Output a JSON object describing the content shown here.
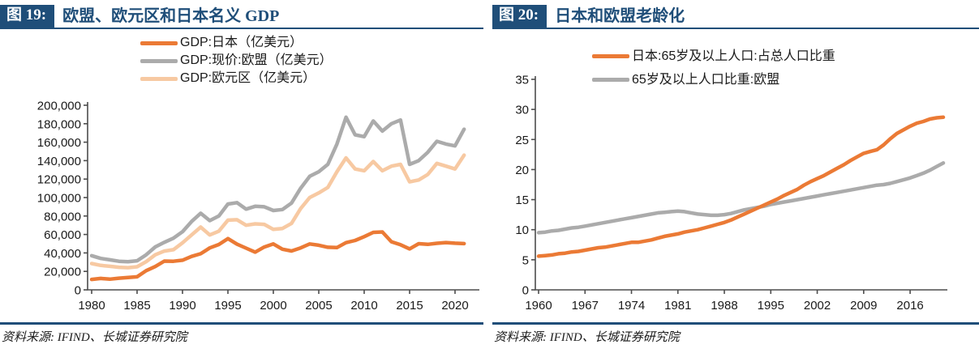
{
  "panels": [
    {
      "fig_label": "图 19:",
      "title": "欧盟、欧元区和日本名义 GDP",
      "source": "资料来源: IFIND、长城证券研究院"
    },
    {
      "fig_label": "图 20:",
      "title": "日本和欧盟老龄化",
      "source": "资料来源: IFIND、长城证券研究院"
    }
  ],
  "colors": {
    "navy": "#1F4E79",
    "orange": "#EB7A35",
    "gray": "#ABABAB",
    "peach": "#F7C9A2",
    "axis": "#4d4d4d"
  },
  "chart_data": [
    {
      "type": "line",
      "title": "欧盟、欧元区和日本名义 GDP",
      "xlabel": "",
      "ylabel": "",
      "ylim": [
        0,
        200000
      ],
      "ytick_step": 20000,
      "xticks": [
        1980,
        1985,
        1990,
        1995,
        2000,
        2005,
        2010,
        2015,
        2020
      ],
      "grid": false,
      "legend_position": "top",
      "x_years": [
        1980,
        1981,
        1982,
        1983,
        1984,
        1985,
        1986,
        1987,
        1988,
        1989,
        1990,
        1991,
        1992,
        1993,
        1994,
        1995,
        1996,
        1997,
        1998,
        1999,
        2000,
        2001,
        2002,
        2003,
        2004,
        2005,
        2006,
        2007,
        2008,
        2009,
        2010,
        2011,
        2012,
        2013,
        2014,
        2015,
        2016,
        2017,
        2018,
        2019,
        2020,
        2021
      ],
      "series": [
        {
          "name": "GDP:日本（亿美元）",
          "color": "#EB7A35",
          "values": [
            11300,
            12400,
            11600,
            12600,
            13300,
            14100,
            20800,
            25300,
            31100,
            31000,
            32100,
            36200,
            39100,
            45400,
            49100,
            55500,
            49500,
            45200,
            40900,
            46400,
            49700,
            44000,
            42100,
            45400,
            49700,
            48300,
            46100,
            45800,
            51100,
            53500,
            57600,
            62300,
            62700,
            52100,
            48900,
            44400,
            50000,
            49300,
            50400,
            51200,
            50500,
            50100
          ]
        },
        {
          "name": "GDP:现价:欧盟（亿美元）",
          "color": "#ABABAB",
          "values": [
            37000,
            34000,
            32500,
            31000,
            30500,
            31500,
            38000,
            46500,
            51500,
            56000,
            63000,
            74000,
            83000,
            75000,
            80000,
            93000,
            94500,
            87500,
            90500,
            90000,
            86000,
            87000,
            94000,
            110000,
            123000,
            128000,
            136000,
            158000,
            187000,
            168000,
            166000,
            183000,
            172000,
            180000,
            184000,
            136000,
            140000,
            149000,
            161000,
            158000,
            156000,
            174000
          ]
        },
        {
          "name": "GDP:欧元区（亿美元）",
          "color": "#F7C9A2",
          "values": [
            28500,
            26500,
            25500,
            24500,
            24000,
            25000,
            30500,
            38000,
            42000,
            43500,
            51000,
            59500,
            68000,
            59500,
            63500,
            75500,
            76000,
            70000,
            71500,
            71000,
            65500,
            66500,
            72000,
            88000,
            100000,
            105000,
            111000,
            128000,
            143000,
            131000,
            129000,
            139000,
            129000,
            134000,
            136000,
            117000,
            119000,
            125000,
            137000,
            134000,
            131000,
            146000
          ]
        }
      ]
    },
    {
      "type": "line",
      "title": "日本和欧盟老龄化",
      "xlabel": "",
      "ylabel": "",
      "ylim": [
        0,
        35
      ],
      "ytick_step": 5,
      "xticks": [
        1960,
        1967,
        1974,
        1981,
        1988,
        1995,
        2002,
        2009,
        2016
      ],
      "grid": false,
      "legend_position": "top",
      "x_years": [
        1960,
        1961,
        1962,
        1963,
        1964,
        1965,
        1966,
        1967,
        1968,
        1969,
        1970,
        1971,
        1972,
        1973,
        1974,
        1975,
        1976,
        1977,
        1978,
        1979,
        1980,
        1981,
        1982,
        1983,
        1984,
        1985,
        1986,
        1987,
        1988,
        1989,
        1990,
        1991,
        1992,
        1993,
        1994,
        1995,
        1996,
        1997,
        1998,
        1999,
        2000,
        2001,
        2002,
        2003,
        2004,
        2005,
        2006,
        2007,
        2008,
        2009,
        2010,
        2011,
        2012,
        2013,
        2014,
        2015,
        2016,
        2017,
        2018,
        2019,
        2020,
        2021
      ],
      "series": [
        {
          "name": "日本:65岁及以上人口:占总人口比重",
          "color": "#EB7A35",
          "values": [
            5.6,
            5.7,
            5.8,
            6.0,
            6.1,
            6.3,
            6.4,
            6.6,
            6.8,
            7.0,
            7.1,
            7.3,
            7.5,
            7.7,
            7.9,
            7.9,
            8.1,
            8.3,
            8.6,
            8.9,
            9.1,
            9.3,
            9.6,
            9.8,
            10.0,
            10.3,
            10.6,
            10.9,
            11.2,
            11.6,
            12.1,
            12.6,
            13.1,
            13.6,
            14.1,
            14.6,
            15.1,
            15.7,
            16.2,
            16.7,
            17.4,
            18.0,
            18.5,
            19.0,
            19.6,
            20.2,
            20.8,
            21.5,
            22.1,
            22.7,
            23.0,
            23.3,
            24.1,
            25.1,
            26.0,
            26.6,
            27.2,
            27.7,
            28.0,
            28.4,
            28.6,
            28.7
          ]
        },
        {
          "name": "65岁及以上人口比重:欧盟",
          "color": "#ABABAB",
          "values": [
            9.5,
            9.6,
            9.8,
            9.9,
            10.1,
            10.3,
            10.4,
            10.6,
            10.8,
            11.0,
            11.2,
            11.4,
            11.6,
            11.8,
            12.0,
            12.2,
            12.4,
            12.6,
            12.8,
            12.9,
            13.0,
            13.1,
            13.0,
            12.8,
            12.6,
            12.5,
            12.4,
            12.4,
            12.5,
            12.7,
            13.0,
            13.3,
            13.5,
            13.7,
            13.9,
            14.2,
            14.4,
            14.6,
            14.8,
            15.0,
            15.2,
            15.4,
            15.6,
            15.8,
            16.0,
            16.2,
            16.4,
            16.6,
            16.8,
            17.0,
            17.2,
            17.4,
            17.5,
            17.7,
            18.0,
            18.3,
            18.6,
            19.0,
            19.4,
            19.9,
            20.5,
            21.1
          ]
        }
      ]
    }
  ]
}
